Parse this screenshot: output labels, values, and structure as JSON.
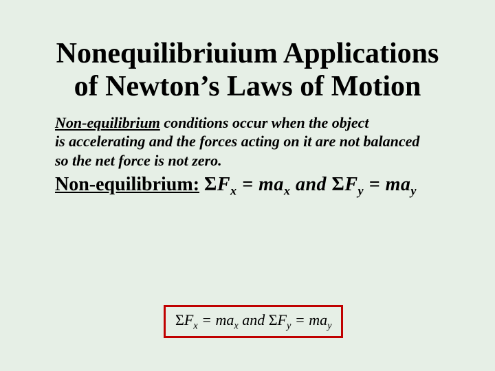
{
  "colors": {
    "background": "#e6efe6",
    "text": "#000000",
    "box_border": "#c00000"
  },
  "typography": {
    "title_fontsize": 42,
    "body_fontsize": 22,
    "equation_line_fontsize": 28,
    "boxed_fontsize": 22,
    "font_family": "Times New Roman"
  },
  "title": {
    "line1": "Nonequilibriuium Applications",
    "line2": "of Newton’s Laws of Motion"
  },
  "body": {
    "underlined_lead": "Non-equilibrium",
    "rest_line1": " conditions occur when the object",
    "line2": "is accelerating and the forces acting on it are not balanced",
    "line3": "so the net force is not zero."
  },
  "equation_line": {
    "label": "Non-equilibrium:",
    "sigma": "Σ",
    "F": "F",
    "subx": "x",
    "eq": " = ",
    "ma": "ma",
    "and": " and ",
    "suby": "y"
  },
  "boxed": {
    "sigma": "Σ",
    "F": "F",
    "subx": "x",
    "eq": " = ",
    "ma": "ma",
    "and": " and ",
    "suby": "y"
  }
}
